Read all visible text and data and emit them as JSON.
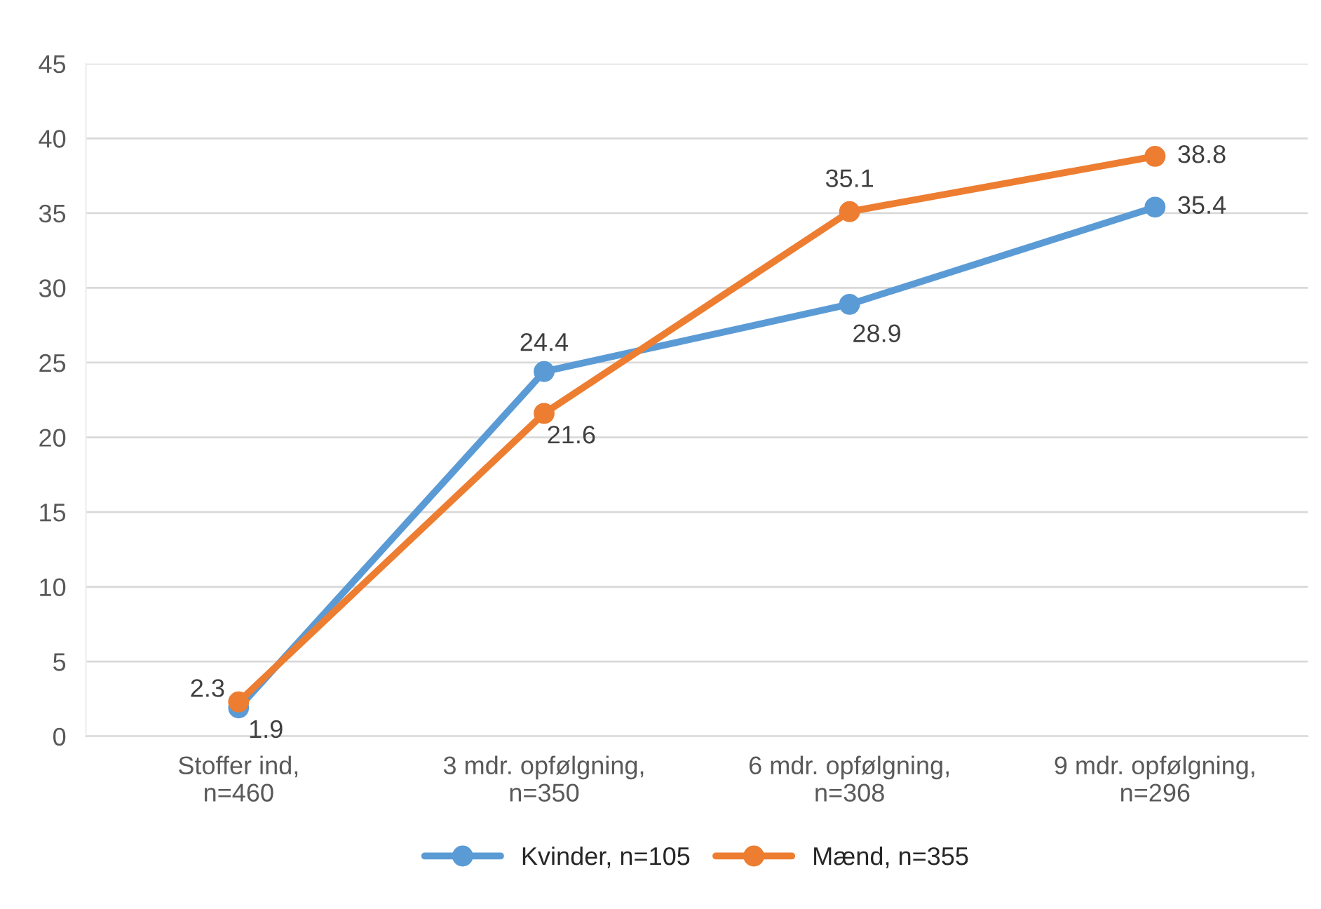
{
  "chart_data": {
    "type": "line",
    "categories": [
      "Stoffer ind,\nn=460",
      "3 mdr. opfølgning,\nn=350",
      "6 mdr. opfølgning,\nn=308",
      "9 mdr. opfølgning,\nn=296"
    ],
    "series": [
      {
        "name": "Kvinder, n=105",
        "color": "#5b9bd5",
        "values": [
          1.9,
          24.4,
          28.9,
          35.4
        ]
      },
      {
        "name": "Mænd, n=355",
        "color": "#ed7d31",
        "values": [
          2.3,
          21.6,
          35.1,
          38.8
        ]
      }
    ],
    "ylim": [
      0,
      45
    ],
    "yticks": [
      0,
      5,
      10,
      15,
      20,
      25,
      30,
      35,
      40,
      45
    ],
    "grid": "y",
    "legend": "bottom",
    "marker": "circle",
    "line_style": "solid",
    "data_labels": true
  }
}
